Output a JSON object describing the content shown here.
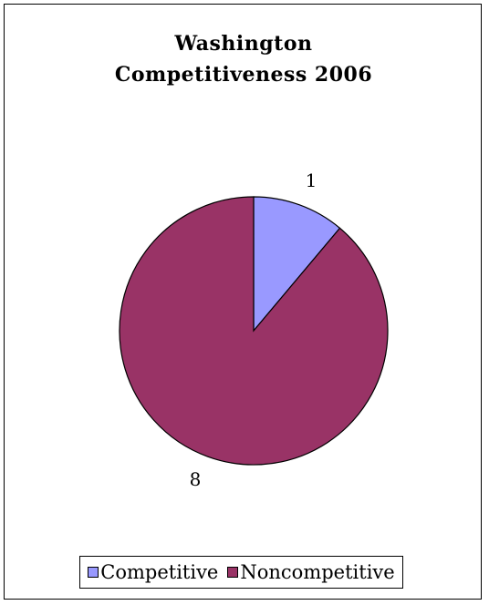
{
  "chart_data": {
    "type": "pie",
    "title_lines": [
      "Washington",
      "Competitiveness 2006"
    ],
    "categories": [
      "Competitive",
      "Noncompetitive"
    ],
    "values": [
      1,
      8
    ],
    "data_labels": [
      "1",
      "8"
    ],
    "colors": [
      "#9999ff",
      "#993366"
    ],
    "start_angle": "12 o'clock",
    "direction": "clockwise",
    "legend": {
      "position": "bottom",
      "entries": [
        "Competitive",
        "Noncompetitive"
      ]
    }
  }
}
